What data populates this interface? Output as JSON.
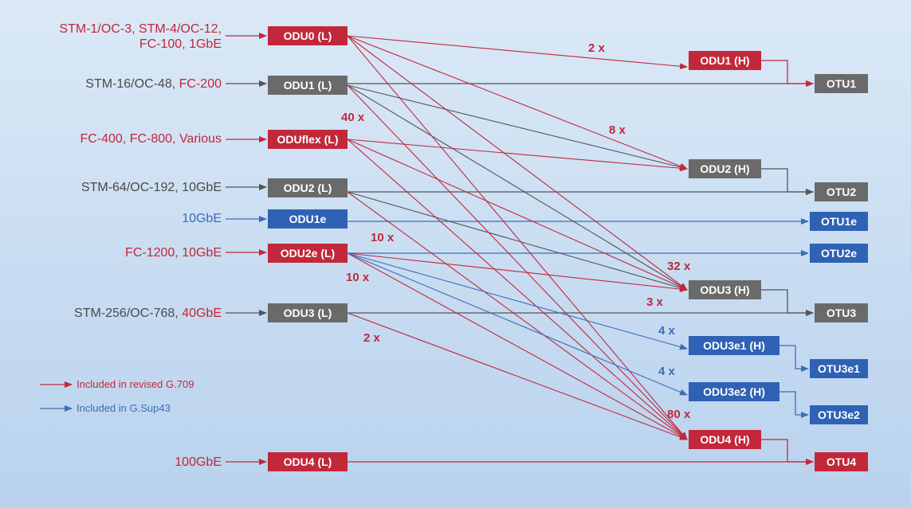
{
  "colors": {
    "red": "#c2283a",
    "gray": "#6a6a6a",
    "blue": "#2f62b4",
    "dark": "#555555"
  },
  "clients": {
    "odu0_a": "STM-1/OC-3, STM-4/OC-12,",
    "odu0_b": "FC-100, 1GbE",
    "odu1_a": "STM-16/OC-48, ",
    "odu1_b": "FC-200",
    "oduflex": "FC-400, FC-800, Various",
    "odu2": "STM-64/OC-192, 10GbE",
    "odu1e": "10GbE",
    "odu2e": "FC-1200, 10GbE",
    "odu3_a": "STM-256/OC-768, ",
    "odu3_b": "40GbE",
    "odu4": "100GbE"
  },
  "lower": {
    "odu0": "ODU0 (L)",
    "odu1": "ODU1 (L)",
    "oduflex": "ODUflex (L)",
    "odu2": "ODU2 (L)",
    "odu1e": "ODU1e",
    "odu2e": "ODU2e (L)",
    "odu3": "ODU3 (L)",
    "odu4": "ODU4 (L)"
  },
  "higher": {
    "odu1": "ODU1 (H)",
    "odu2": "ODU2 (H)",
    "odu3": "ODU3 (H)",
    "odu3e1": "ODU3e1 (H)",
    "odu3e2": "ODU3e2 (H)",
    "odu4": "ODU4 (H)"
  },
  "otu": {
    "otu1": "OTU1",
    "otu2": "OTU2",
    "otu1e": "OTU1e",
    "otu2e": "OTU2e",
    "otu3": "OTU3",
    "otu3e1": "OTU3e1",
    "otu3e2": "OTU3e2",
    "otu4": "OTU4"
  },
  "multipliers": {
    "m2x_top": "2 x",
    "m40x": "40 x",
    "m8x": "8 x",
    "m10x_a": "10 x",
    "m10x_b": "10 x",
    "m32x": "32 x",
    "m3x": "3 x",
    "m2x_bottom": "2 x",
    "m4x_a": "4 x",
    "m4x_b": "4 x",
    "m80x": "80 x"
  },
  "legend": {
    "red_label": "Included in revised G.709",
    "blue_label": "Included in G.Sup43"
  }
}
